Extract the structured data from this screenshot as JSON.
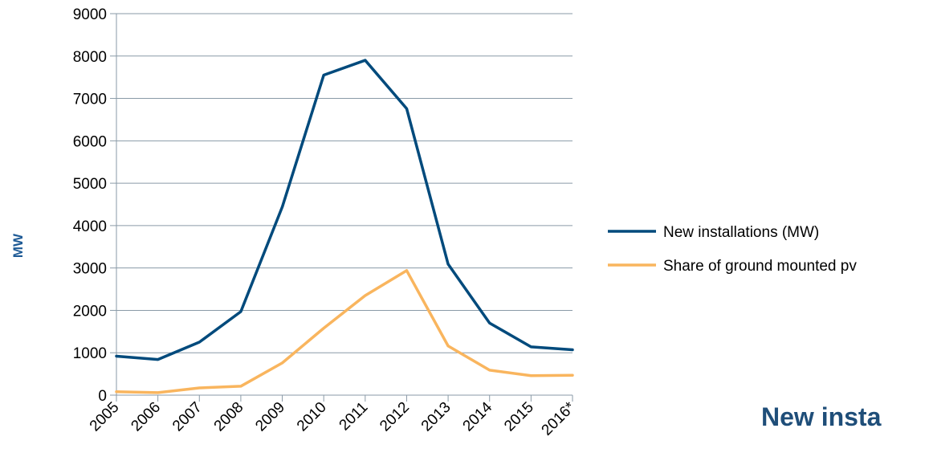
{
  "chart_data": {
    "type": "line",
    "x": [
      "2005",
      "2006",
      "2007",
      "2008",
      "2009",
      "2010",
      "2011",
      "2012",
      "2013",
      "2014",
      "2015",
      "2016*"
    ],
    "series": [
      {
        "name": "New installations (MW)",
        "color": "#004a7c",
        "values": [
          920,
          840,
          1250,
          1970,
          4440,
          7550,
          7900,
          6760,
          3090,
          1700,
          1140,
          1070
        ]
      },
      {
        "name": "Share of ground mounted pv",
        "color": "#f9b55e",
        "values": [
          80,
          60,
          170,
          210,
          760,
          1580,
          2350,
          2940,
          1160,
          590,
          460,
          470
        ]
      }
    ],
    "ylabel": "MW",
    "ylim": [
      0,
      9000
    ],
    "yticks": [
      0,
      1000,
      2000,
      3000,
      4000,
      5000,
      6000,
      7000,
      8000,
      9000
    ],
    "grid": true,
    "legend": "right"
  },
  "page_title": "New insta"
}
